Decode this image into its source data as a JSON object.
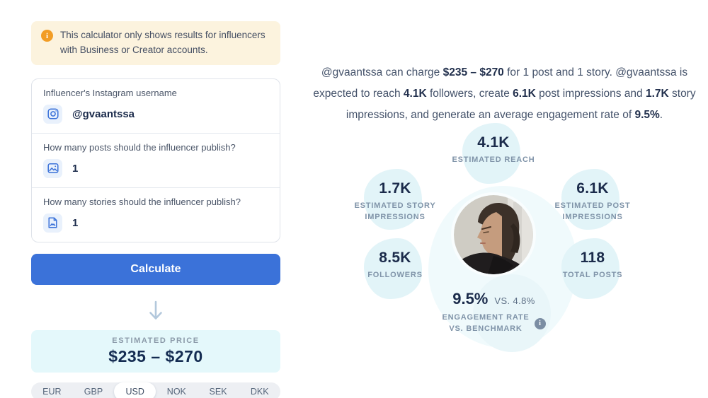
{
  "notice": {
    "text": "This calculator only shows results for influencers with Business or Creator accounts.",
    "icon_color": "#f29d25"
  },
  "form": {
    "fields": [
      {
        "label": "Influencer's Instagram username",
        "value": "@gvaantssa",
        "icon": "instagram-icon"
      },
      {
        "label": "How many posts should the influencer publish?",
        "value": "1",
        "icon": "posts-image-icon"
      },
      {
        "label": "How many stories should the influencer publish?",
        "value": "1",
        "icon": "stories-document-icon"
      }
    ],
    "submit_label": "Calculate"
  },
  "price": {
    "label": "ESTIMATED PRICE",
    "value": "$235 – $270"
  },
  "currency": {
    "options": [
      "EUR",
      "GBP",
      "USD",
      "NOK",
      "SEK",
      "DKK"
    ],
    "selected": "USD"
  },
  "summary_segments": [
    {
      "text": "@gvaantssa can charge ",
      "bold": false
    },
    {
      "text": "$235 – $270",
      "bold": true
    },
    {
      "text": " for 1 post and 1 story. @gvaantssa is expected to reach ",
      "bold": false
    },
    {
      "text": "4.1K",
      "bold": true
    },
    {
      "text": " followers, create ",
      "bold": false
    },
    {
      "text": "6.1K",
      "bold": true
    },
    {
      "text": " post impressions and ",
      "bold": false
    },
    {
      "text": "1.7K",
      "bold": true
    },
    {
      "text": " story impressions, and generate an average engagement rate of ",
      "bold": false
    },
    {
      "text": "9.5%",
      "bold": true
    },
    {
      "text": ".",
      "bold": false
    }
  ],
  "stats": {
    "estimated_reach": {
      "value": "4.1K",
      "label": "ESTIMATED REACH"
    },
    "estimated_story_impressions": {
      "value": "1.7K",
      "label": "ESTIMATED STORY IMPRESSIONS"
    },
    "estimated_post_impressions": {
      "value": "6.1K",
      "label": "ESTIMATED POST IMPRESSIONS"
    },
    "followers": {
      "value": "8.5K",
      "label": "FOLLOWERS"
    },
    "total_posts": {
      "value": "118",
      "label": "TOTAL POSTS"
    },
    "engagement": {
      "value": "9.5%",
      "benchmark": "VS. 4.8%",
      "label_line1": "ENGAGEMENT RATE",
      "label_line2": "VS. BENCHMARK"
    }
  },
  "colors": {
    "accent_blue": "#3b72d9",
    "dark_navy": "#1b2b4b",
    "blob_cyan": "#e2f4f8",
    "price_bg": "#e4f8fb",
    "notice_bg": "#fcf3de",
    "notice_icon": "#f29d25"
  }
}
